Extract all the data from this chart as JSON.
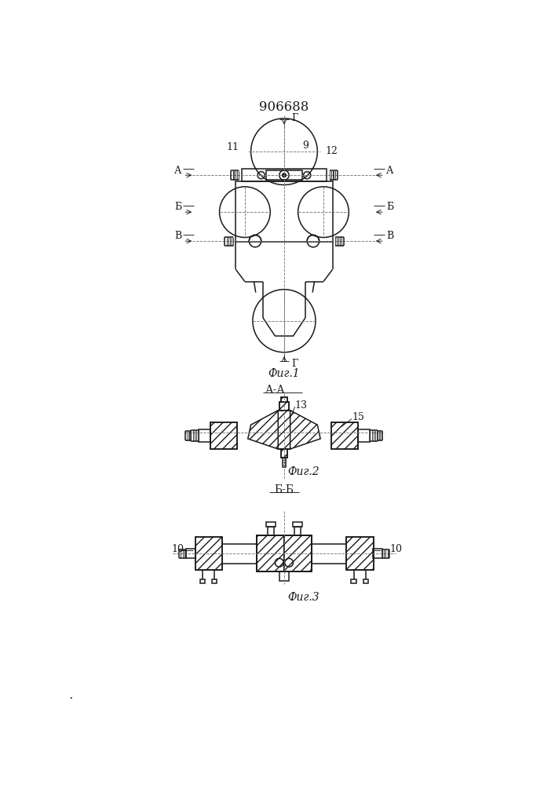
{
  "title": "906688",
  "bg_color": "#ffffff",
  "lc": "#1a1a1a",
  "fig1_label": "Фиг.1",
  "fig2_label": "Фиг.2",
  "fig3_label": "Фиг.3",
  "section_aa": "А-А",
  "section_bb": "Б-Б",
  "lA": "А",
  "lB": "Б",
  "lV": "В",
  "lG": "Г",
  "n9": "9",
  "n10": "10",
  "n11": "11",
  "n12": "12",
  "n13": "13",
  "n15": "15"
}
